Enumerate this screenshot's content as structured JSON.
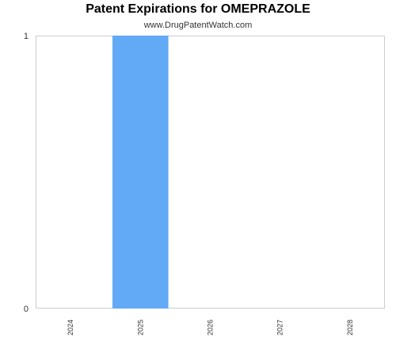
{
  "chart_data": {
    "type": "bar",
    "title": "Patent Expirations for OMEPRAZOLE",
    "subtitle": "www.DrugPatentWatch.com",
    "categories": [
      "2024",
      "2025",
      "2026",
      "2027",
      "2028"
    ],
    "values": [
      0,
      1,
      0,
      0,
      0
    ],
    "ylim": [
      0,
      1
    ],
    "yticks": [
      "0",
      "1"
    ],
    "xlabel": "",
    "ylabel": "",
    "grid": false,
    "colors": {
      "bar": "#62a9f6",
      "frame": "#cccccc"
    }
  }
}
